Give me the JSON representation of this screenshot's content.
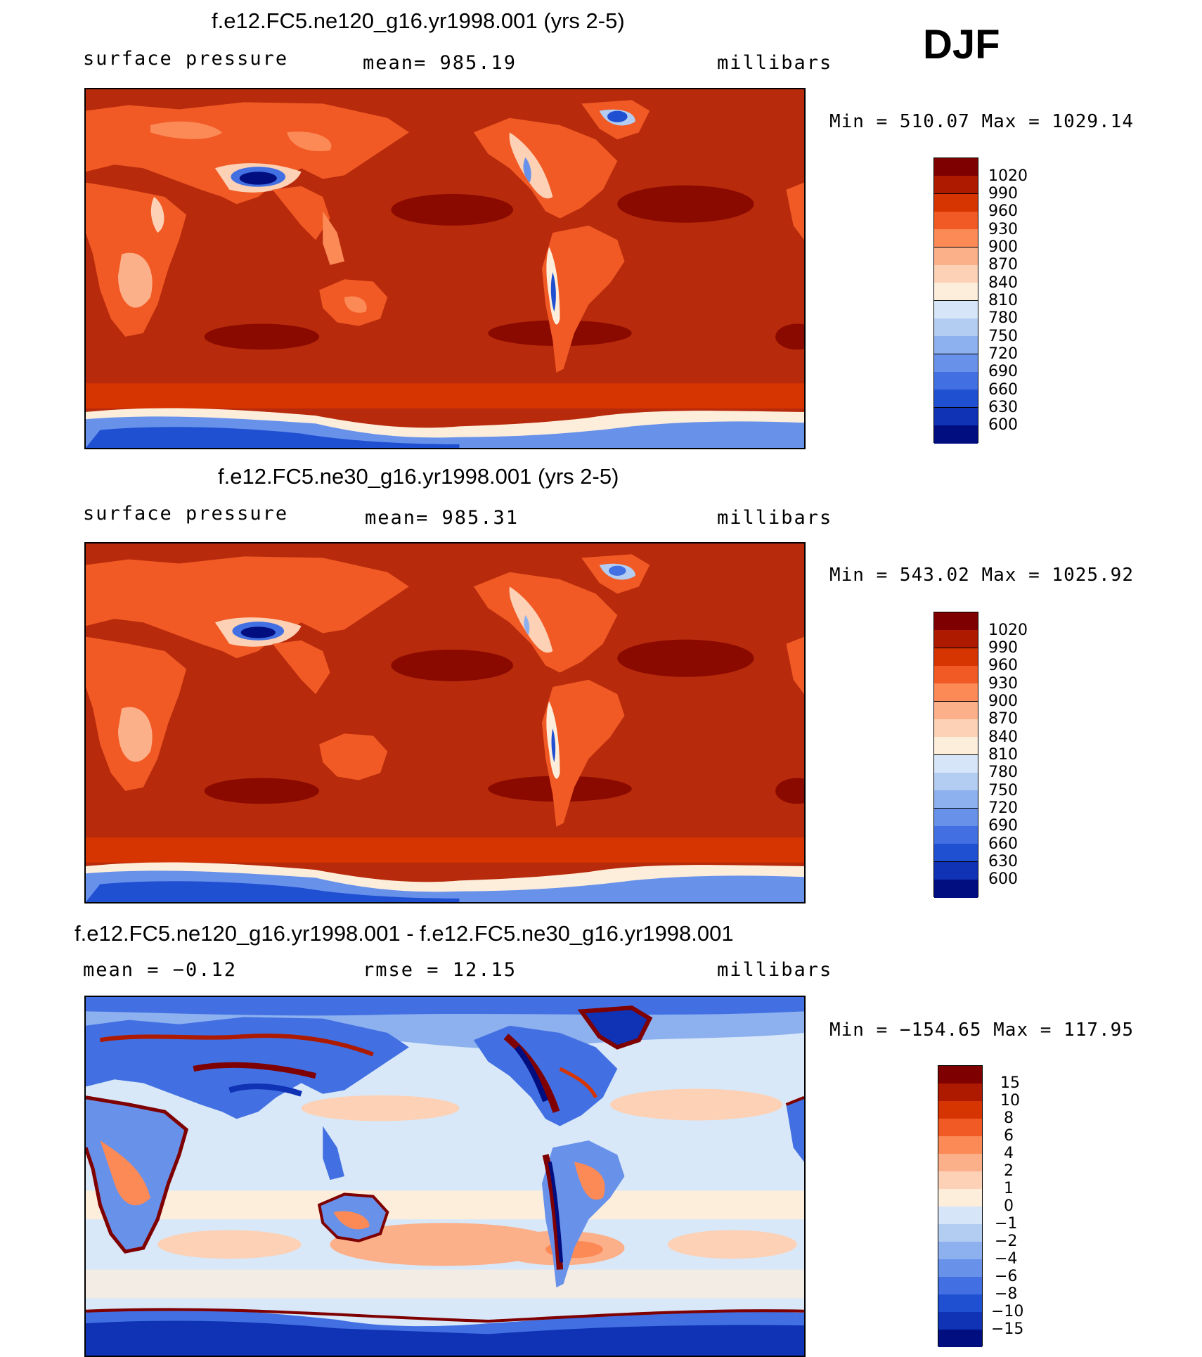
{
  "season": "DJF",
  "panels": [
    {
      "title": "f.e12.FC5.ne120_g16.yr1998.001 (yrs 2-5)",
      "left_label": "surface pressure",
      "center_label": "mean= 985.19",
      "right_label": "millibars",
      "min_max": "Min = 510.07 Max = 1029.14",
      "colorbar_labels": [
        "1020",
        "990",
        "960",
        "930",
        "900",
        "870",
        "840",
        "810",
        "780",
        "750",
        "720",
        "690",
        "660",
        "630",
        "600"
      ]
    },
    {
      "title": "f.e12.FC5.ne30_g16.yr1998.001 (yrs 2-5)",
      "left_label": "surface pressure",
      "center_label": "mean= 985.31",
      "right_label": "millibars",
      "min_max": "Min = 543.02 Max = 1025.92",
      "colorbar_labels": [
        "1020",
        "990",
        "960",
        "930",
        "900",
        "870",
        "840",
        "810",
        "780",
        "750",
        "720",
        "690",
        "660",
        "630",
        "600"
      ]
    },
    {
      "title": "f.e12.FC5.ne120_g16.yr1998.001 - f.e12.FC5.ne30_g16.yr1998.001",
      "left_label": "mean =   −0.12",
      "center_label": "rmse =   12.15",
      "right_label": "millibars",
      "min_max": "Min = −154.65 Max = 117.95",
      "colorbar_labels": [
        "15",
        "10",
        "8",
        "6",
        "4",
        "2",
        "1",
        "0",
        "−1",
        "−2",
        "−4",
        "−6",
        "−8",
        "−10",
        "−15"
      ]
    }
  ],
  "colors": {
    "abs_bins": [
      "#7f0000",
      "#ae1a00",
      "#d63400",
      "#f15a24",
      "#fb8a57",
      "#fcb08a",
      "#fdd1b6",
      "#fdeedc",
      "#d6e6f8",
      "#b3cdf2",
      "#8db0ee",
      "#6891ea",
      "#4270e2",
      "#2050d2",
      "#1032b4",
      "#000e80"
    ],
    "diff_bins": [
      "#7f0000",
      "#ae1a00",
      "#d63400",
      "#f15a24",
      "#fb8a57",
      "#fcb08a",
      "#fdd1b6",
      "#fdeedc",
      "#d6e6f8",
      "#b3cdf2",
      "#8db0ee",
      "#6891ea",
      "#4270e2",
      "#2050d2",
      "#1032b4",
      "#000e80"
    ],
    "ocean_abs": "#b72a0c",
    "ocean_diff": "#d8e8f8"
  }
}
